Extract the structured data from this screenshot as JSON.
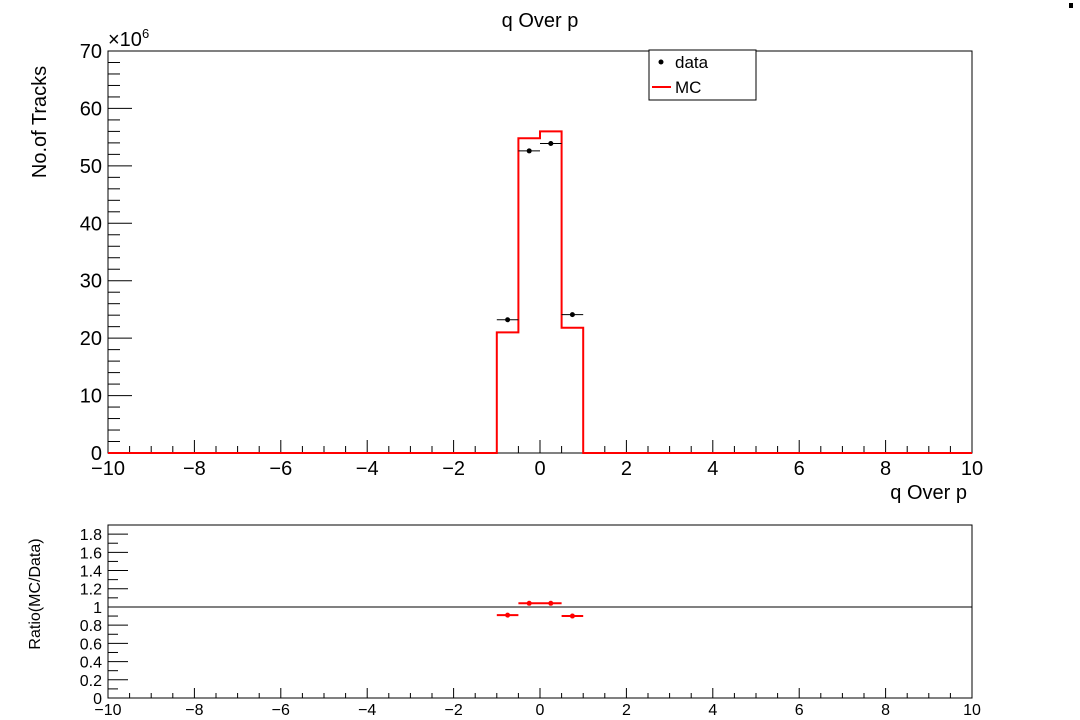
{
  "canvas_title": "q Over p",
  "chart_data": [
    {
      "type": "histogram",
      "title": "q Over p",
      "xlabel": "q Over p",
      "ylabel": "No.of Tracks",
      "y_multiplier_label": "×10",
      "y_multiplier_exponent": "6",
      "xlim": [
        -10,
        10
      ],
      "ylim": [
        0,
        70
      ],
      "x_ticks": [
        -10,
        -8,
        -6,
        -4,
        -2,
        0,
        2,
        4,
        6,
        8,
        10
      ],
      "y_ticks": [
        0,
        10,
        20,
        30,
        40,
        50,
        60,
        70
      ],
      "legend": {
        "placement": "top-right",
        "entries": [
          {
            "label": "data",
            "style": "marker"
          },
          {
            "label": "MC",
            "style": "line"
          }
        ]
      },
      "series": [
        {
          "name": "MC",
          "kind": "step",
          "color": "#ff0000",
          "bin_edges": [
            -10,
            -1,
            -0.5,
            0,
            0.5,
            1,
            10
          ],
          "values": [
            0,
            21,
            54.8,
            56,
            21.8,
            0
          ]
        },
        {
          "name": "data",
          "kind": "points",
          "color": "#000000",
          "x": [
            -0.75,
            -0.25,
            0.25,
            0.75
          ],
          "x_err": [
            0.25,
            0.25,
            0.25,
            0.25
          ],
          "y": [
            23.2,
            52.6,
            53.9,
            24.1
          ]
        }
      ]
    },
    {
      "type": "scatter",
      "title": "",
      "xlabel": "",
      "ylabel": "Ratio(MC/Data)",
      "xlim": [
        -10,
        10
      ],
      "ylim": [
        0,
        1.9
      ],
      "x_ticks": [
        -10,
        -8,
        -6,
        -4,
        -2,
        0,
        2,
        4,
        6,
        8,
        10
      ],
      "y_ticks": [
        0,
        0.2,
        0.4,
        0.6,
        0.8,
        1,
        1.2,
        1.4,
        1.6,
        1.8
      ],
      "reference_line": 1,
      "series": [
        {
          "kind": "points",
          "color": "#ff0000",
          "x": [
            -0.75,
            -0.25,
            0.25,
            0.75
          ],
          "x_err": [
            0.25,
            0.25,
            0.25,
            0.25
          ],
          "y": [
            0.91,
            1.04,
            1.04,
            0.9
          ]
        }
      ]
    }
  ]
}
